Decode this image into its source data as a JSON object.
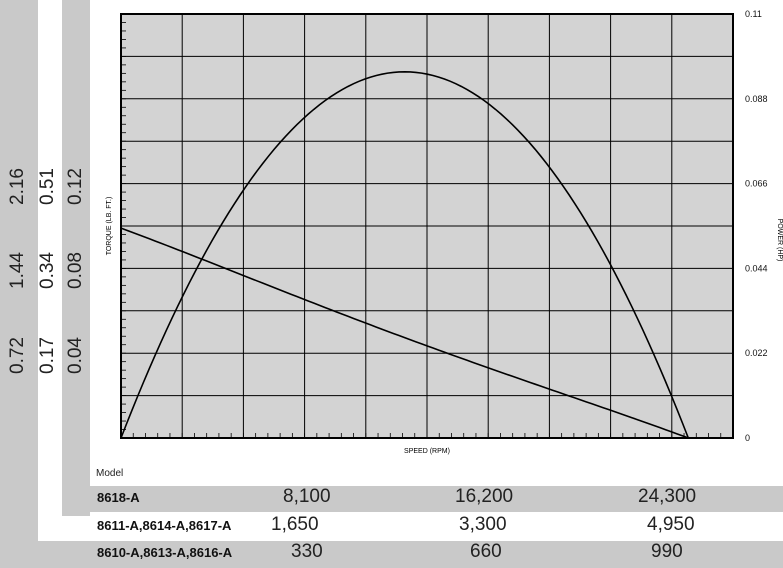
{
  "chart_data": {
    "type": "line",
    "xlabel": "SPEED (RPM)",
    "ylabel": "TORQUE (LB. FT.)",
    "y2label": "POWER (HP)",
    "grid": true,
    "x_fraction": [
      0,
      0.5,
      1
    ],
    "torque_fraction_of_stall": [
      1.0,
      0.5,
      0.0
    ],
    "power_hp": [
      0,
      0.095,
      0
    ],
    "power_ylim": [
      0,
      0.11
    ],
    "power_ticks": [
      "0.11",
      "0.088",
      "0.066",
      "0.044",
      "0.022",
      "0"
    ],
    "torque_tick_columns": [
      [
        "0.04",
        "0.08",
        "0.12"
      ],
      [
        "0.17",
        "0.34",
        "0.51"
      ],
      [
        "0.72",
        "1.44",
        "2.16"
      ]
    ]
  },
  "table": {
    "header": "Model",
    "rows": [
      {
        "model": "8618-A",
        "values": [
          "8,100",
          "16,200",
          "24,300"
        ]
      },
      {
        "model": "8611-A,8614-A,8617-A",
        "values": [
          "1,650",
          "3,300",
          "4,950"
        ]
      },
      {
        "model": "8610-A,8613-A,8616-A",
        "values": [
          "330",
          "660",
          "990"
        ]
      }
    ]
  }
}
